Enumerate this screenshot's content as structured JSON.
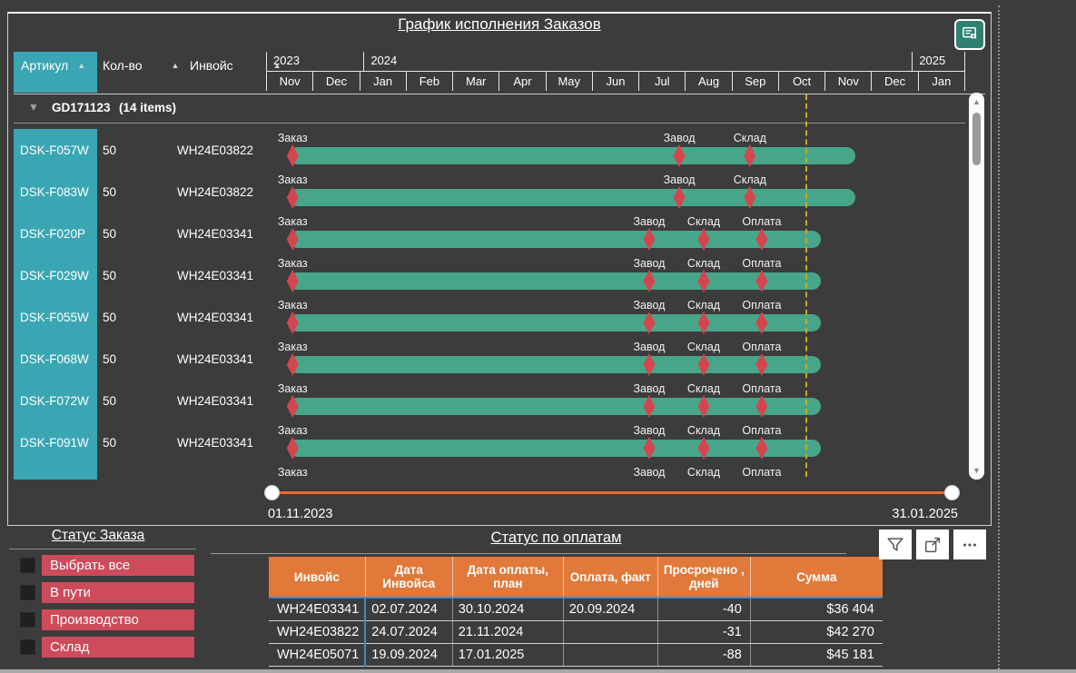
{
  "colors": {
    "background": "#3c3c3c",
    "teal": "#3aa6b3",
    "bar_green": "#47a68a",
    "milestone_red": "#d5454f",
    "legend_red": "#cd4b5a",
    "table_orange": "#e0793a",
    "slider_orange": "#e8692c",
    "today_yellow": "#c9a822",
    "table_blue": "#4a86c5",
    "icon_teal": "#2e8070"
  },
  "gantt": {
    "title": "График исполнения Заказов",
    "corner_icon": "report-icon",
    "columns": [
      {
        "label": "Артикул",
        "sort_icon": "triangle-up"
      },
      {
        "label": "Кол-во",
        "sort_icon": "triangle-up"
      },
      {
        "label": "Инвойс",
        "sort_icon": "triangle-up"
      }
    ],
    "years": [
      {
        "label": "2023",
        "months_span": 2
      },
      {
        "label": "2024",
        "months_span": 12
      },
      {
        "label": "2025",
        "months_span": 1
      }
    ],
    "months": [
      "Nov",
      "Dec",
      "Jan",
      "Feb",
      "Mar",
      "Apr",
      "May",
      "Jun",
      "Jul",
      "Aug",
      "Sep",
      "Oct",
      "Nov",
      "Dec",
      "Jan"
    ],
    "group": {
      "id": "GD171123",
      "items_label": "(14 items)",
      "collapse_icon": "chevron-down-icon"
    },
    "rows": [
      {
        "article": "DSK-F057W",
        "qty": "50",
        "invoice": "WH24E03822",
        "bar": {
          "start_pct": 3.2,
          "end_pct": 84.3
        },
        "milestones": [
          {
            "label": "Заказ",
            "pos_pct": 3.8
          },
          {
            "label": "Завод",
            "pos_pct": 59.1
          },
          {
            "label": "Склад",
            "pos_pct": 69.2
          }
        ]
      },
      {
        "article": "DSK-F083W",
        "qty": "50",
        "invoice": "WH24E03822",
        "bar": {
          "start_pct": 3.2,
          "end_pct": 84.3
        },
        "milestones": [
          {
            "label": "Заказ",
            "pos_pct": 3.8
          },
          {
            "label": "Завод",
            "pos_pct": 59.1
          },
          {
            "label": "Склад",
            "pos_pct": 69.2
          }
        ]
      },
      {
        "article": "DSK-F020P",
        "qty": "50",
        "invoice": "WH24E03341",
        "bar": {
          "start_pct": 3.2,
          "end_pct": 79.4
        },
        "milestones": [
          {
            "label": "Заказ",
            "pos_pct": 3.8
          },
          {
            "label": "Завод",
            "pos_pct": 54.8
          },
          {
            "label": "Склад",
            "pos_pct": 62.6
          },
          {
            "label": "Оплата",
            "pos_pct": 70.9
          }
        ]
      },
      {
        "article": "DSK-F029W",
        "qty": "50",
        "invoice": "WH24E03341",
        "bar": {
          "start_pct": 3.2,
          "end_pct": 79.4
        },
        "milestones": [
          {
            "label": "Заказ",
            "pos_pct": 3.8
          },
          {
            "label": "Завод",
            "pos_pct": 54.8
          },
          {
            "label": "Склад",
            "pos_pct": 62.6
          },
          {
            "label": "Оплата",
            "pos_pct": 70.9
          }
        ]
      },
      {
        "article": "DSK-F055W",
        "qty": "50",
        "invoice": "WH24E03341",
        "bar": {
          "start_pct": 3.2,
          "end_pct": 79.4
        },
        "milestones": [
          {
            "label": "Заказ",
            "pos_pct": 3.8
          },
          {
            "label": "Завод",
            "pos_pct": 54.8
          },
          {
            "label": "Склад",
            "pos_pct": 62.6
          },
          {
            "label": "Оплата",
            "pos_pct": 70.9
          }
        ]
      },
      {
        "article": "DSK-F068W",
        "qty": "50",
        "invoice": "WH24E03341",
        "bar": {
          "start_pct": 3.2,
          "end_pct": 79.4
        },
        "milestones": [
          {
            "label": "Заказ",
            "pos_pct": 3.8
          },
          {
            "label": "Завод",
            "pos_pct": 54.8
          },
          {
            "label": "Склад",
            "pos_pct": 62.6
          },
          {
            "label": "Оплата",
            "pos_pct": 70.9
          }
        ]
      },
      {
        "article": "DSK-F072W",
        "qty": "50",
        "invoice": "WH24E03341",
        "bar": {
          "start_pct": 3.2,
          "end_pct": 79.4
        },
        "milestones": [
          {
            "label": "Заказ",
            "pos_pct": 3.8
          },
          {
            "label": "Завод",
            "pos_pct": 54.8
          },
          {
            "label": "Склад",
            "pos_pct": 62.6
          },
          {
            "label": "Оплата",
            "pos_pct": 70.9
          }
        ]
      },
      {
        "article": "DSK-F091W",
        "qty": "50",
        "invoice": "WH24E03341",
        "bar": {
          "start_pct": 3.2,
          "end_pct": 79.4
        },
        "milestones": [
          {
            "label": "Заказ",
            "pos_pct": 3.8
          },
          {
            "label": "Завод",
            "pos_pct": 54.8
          },
          {
            "label": "Склад",
            "pos_pct": 62.6
          },
          {
            "label": "Оплата",
            "pos_pct": 70.9
          }
        ]
      },
      {
        "article": "",
        "qty": "",
        "invoice": "",
        "partial": true,
        "bar": null,
        "milestones": [
          {
            "label": "Заказ",
            "pos_pct": 3.8
          },
          {
            "label": "Завод",
            "pos_pct": 54.8
          },
          {
            "label": "Склад",
            "pos_pct": 62.6
          },
          {
            "label": "Оплата",
            "pos_pct": 70.9
          }
        ]
      }
    ],
    "today_pos_pct": 77.1,
    "slider": {
      "start_label": "01.11.2023",
      "end_label": "31.01.2025"
    }
  },
  "status_order": {
    "title": "Статус Заказа",
    "items": [
      {
        "label": "Выбрать все"
      },
      {
        "label": "В пути"
      },
      {
        "label": "Производство"
      },
      {
        "label": "Склад"
      }
    ]
  },
  "payments": {
    "title": "Статус по оплатам",
    "headers": [
      "Инвойс",
      "Дата Инвойса",
      "Дата оплаты, план",
      "Оплата, факт",
      "Просрочено , дней",
      "Сумма"
    ],
    "rows": [
      [
        "WH24E03341",
        "02.07.2024",
        "30.10.2024",
        "20.09.2024",
        "-40",
        "$36 404"
      ],
      [
        "WH24E03822",
        "24.07.2024",
        "21.11.2024",
        "",
        "-31",
        "$42 270"
      ],
      [
        "WH24E05071",
        "19.09.2024",
        "17.01.2025",
        "",
        "-88",
        "$45 181"
      ]
    ]
  },
  "visual_header": {
    "icons": [
      "filter-icon",
      "focus-mode-icon",
      "more-options-icon"
    ]
  }
}
